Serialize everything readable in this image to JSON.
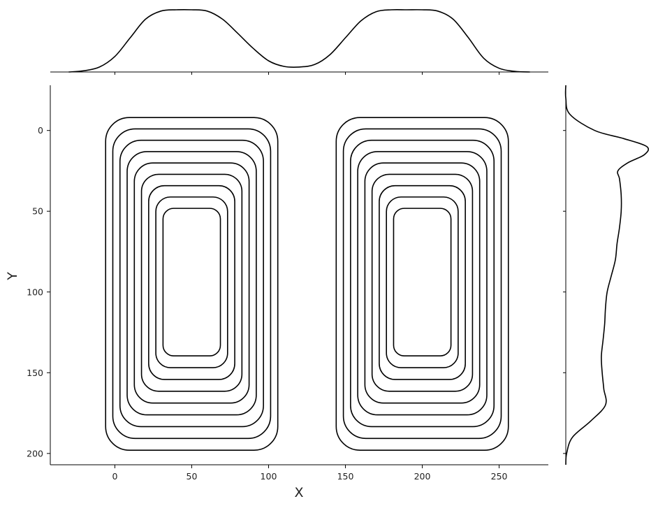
{
  "chart_data": {
    "type": "contour",
    "kind": "bivariate kde contour with marginal kde curves",
    "title": "",
    "xlabel": "X",
    "ylabel": "Y",
    "xlim": [
      -42,
      282
    ],
    "ylim": [
      207,
      -28
    ],
    "y_inverted": true,
    "x_ticks": [
      0,
      50,
      100,
      150,
      200,
      250
    ],
    "y_ticks": [
      0,
      50,
      100,
      150,
      200
    ],
    "x_tick_labels": [
      "0",
      "50",
      "100",
      "150",
      "200",
      "250"
    ],
    "y_tick_labels": [
      "0",
      "50",
      "100",
      "150",
      "200"
    ],
    "grid": false,
    "line_color": "#000000",
    "contour_levels": 9,
    "clusters": [
      {
        "x_range": [
          0,
          100
        ],
        "y_range": [
          0,
          190
        ]
      },
      {
        "x_range": [
          150,
          250
        ],
        "y_range": [
          0,
          190
        ]
      }
    ],
    "marginal_x": {
      "x": [
        -30,
        -20,
        -10,
        0,
        10,
        20,
        30,
        40,
        50,
        60,
        70,
        80,
        90,
        100,
        110,
        120,
        130,
        140,
        150,
        160,
        170,
        180,
        190,
        200,
        210,
        220,
        230,
        240,
        250,
        260,
        270
      ],
      "density": [
        0.0,
        0.02,
        0.08,
        0.25,
        0.55,
        0.85,
        0.98,
        1.0,
        1.0,
        0.98,
        0.85,
        0.62,
        0.38,
        0.18,
        0.09,
        0.08,
        0.12,
        0.28,
        0.55,
        0.82,
        0.97,
        1.0,
        1.0,
        1.0,
        0.98,
        0.85,
        0.55,
        0.22,
        0.06,
        0.01,
        0.0
      ]
    },
    "marginal_y": {
      "y": [
        -28,
        -20,
        -10,
        0,
        5,
        10,
        15,
        20,
        25,
        30,
        40,
        50,
        60,
        70,
        80,
        90,
        100,
        110,
        120,
        130,
        140,
        150,
        160,
        170,
        180,
        190,
        200,
        207
      ],
      "density": [
        0.0,
        0.0,
        0.05,
        0.35,
        0.7,
        0.98,
        0.95,
        0.75,
        0.63,
        0.65,
        0.67,
        0.67,
        0.65,
        0.62,
        0.6,
        0.55,
        0.5,
        0.48,
        0.47,
        0.45,
        0.43,
        0.44,
        0.46,
        0.48,
        0.3,
        0.08,
        0.01,
        0.0
      ]
    }
  }
}
